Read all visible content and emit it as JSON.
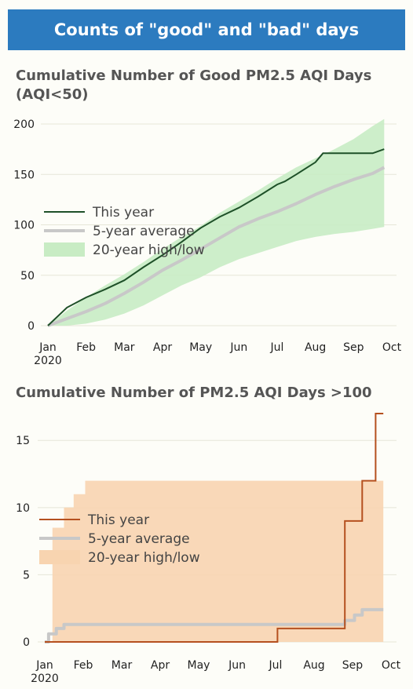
{
  "header": {
    "title": "Counts of \"good\" and \"bad\" days"
  },
  "chart_data": [
    {
      "type": "line",
      "title": "Cumulative Number of Good PM2.5 AQI Days (AQI<50)",
      "x_ticks": [
        "Jan",
        "Feb",
        "Mar",
        "Apr",
        "May",
        "Jun",
        "Jul",
        "Aug",
        "Sep",
        "Oct"
      ],
      "x_year_label": "2020",
      "xlim": [
        0,
        9
      ],
      "ylim": [
        0,
        200
      ],
      "y_ticks": [
        0,
        50,
        100,
        150,
        200
      ],
      "grid": "horizontal",
      "legend_position": "center-left",
      "legend": [
        "This year",
        "5-year average",
        "20-year high/low"
      ],
      "colors": {
        "this_year": "#1e5028",
        "average": "#c8c8c8",
        "band": "#c8ecc4"
      },
      "series": [
        {
          "name": "This year",
          "style": "line",
          "x": [
            0,
            0.5,
            1,
            1.5,
            2,
            2.5,
            3,
            3.5,
            4,
            4.5,
            5,
            5.5,
            6,
            6.2,
            6.5,
            7,
            7.2,
            7.5,
            8,
            8.5,
            8.8
          ],
          "y": [
            0,
            18,
            28,
            36,
            45,
            58,
            70,
            83,
            97,
            108,
            117,
            128,
            140,
            143,
            150,
            162,
            171,
            171,
            171,
            171,
            175
          ]
        },
        {
          "name": "5-year average",
          "style": "line",
          "x": [
            0,
            0.5,
            1,
            1.5,
            2,
            2.5,
            3,
            3.5,
            4,
            4.5,
            5,
            5.5,
            6,
            6.5,
            7,
            7.5,
            8,
            8.5,
            8.8
          ],
          "y": [
            0,
            7,
            14,
            22,
            32,
            43,
            55,
            65,
            76,
            87,
            98,
            106,
            113,
            121,
            130,
            138,
            145,
            151,
            157
          ]
        },
        {
          "name": "20-year high/low",
          "style": "band",
          "x": [
            0,
            0.5,
            1,
            1.5,
            2,
            2.5,
            3,
            3.5,
            4,
            4.5,
            5,
            5.5,
            6,
            6.5,
            7,
            7.5,
            8,
            8.5,
            8.8
          ],
          "high": [
            0,
            15,
            28,
            40,
            51,
            63,
            76,
            88,
            99,
            112,
            123,
            134,
            146,
            157,
            166,
            175,
            185,
            198,
            205
          ],
          "low": [
            0,
            0,
            2,
            6,
            12,
            20,
            30,
            40,
            48,
            58,
            66,
            72,
            78,
            84,
            88,
            91,
            93,
            96,
            98
          ]
        }
      ]
    },
    {
      "type": "line",
      "title": "Cumulative Number of PM2.5 AQI Days >100",
      "x_ticks": [
        "Jan",
        "Feb",
        "Mar",
        "Apr",
        "May",
        "Jun",
        "Jul",
        "Aug",
        "Sep",
        "Oct"
      ],
      "x_year_label": "2020",
      "xlim": [
        0,
        9
      ],
      "ylim": [
        0,
        17
      ],
      "y_ticks": [
        0,
        5,
        10,
        15
      ],
      "grid": "horizontal",
      "legend_position": "center-left",
      "legend": [
        "This year",
        "5-year average",
        "20-year high/low"
      ],
      "colors": {
        "this_year": "#b5501f",
        "average": "#c8c8c8",
        "band": "#f8d4b0"
      },
      "series": [
        {
          "name": "This year",
          "style": "step",
          "x": [
            0,
            6.0,
            6.05,
            7.55,
            7.8,
            8.2,
            8.25,
            8.5,
            8.6,
            8.8
          ],
          "y": [
            0,
            0,
            1,
            1,
            9,
            9,
            12,
            12,
            17,
            17
          ]
        },
        {
          "name": "5-year average",
          "style": "step",
          "x": [
            0,
            0.1,
            0.3,
            0.5,
            7.6,
            7.8,
            8.05,
            8.25,
            8.8
          ],
          "y": [
            0,
            0.6,
            1.0,
            1.3,
            1.3,
            1.6,
            2.0,
            2.4,
            2.4
          ]
        },
        {
          "name": "20-year high/low",
          "style": "step-band",
          "x": [
            0,
            0.2,
            0.5,
            0.75,
            1.05,
            8.8
          ],
          "high": [
            0,
            8.5,
            10,
            11,
            12,
            12
          ],
          "low": [
            0,
            0,
            0,
            0,
            0,
            0
          ]
        }
      ]
    }
  ]
}
